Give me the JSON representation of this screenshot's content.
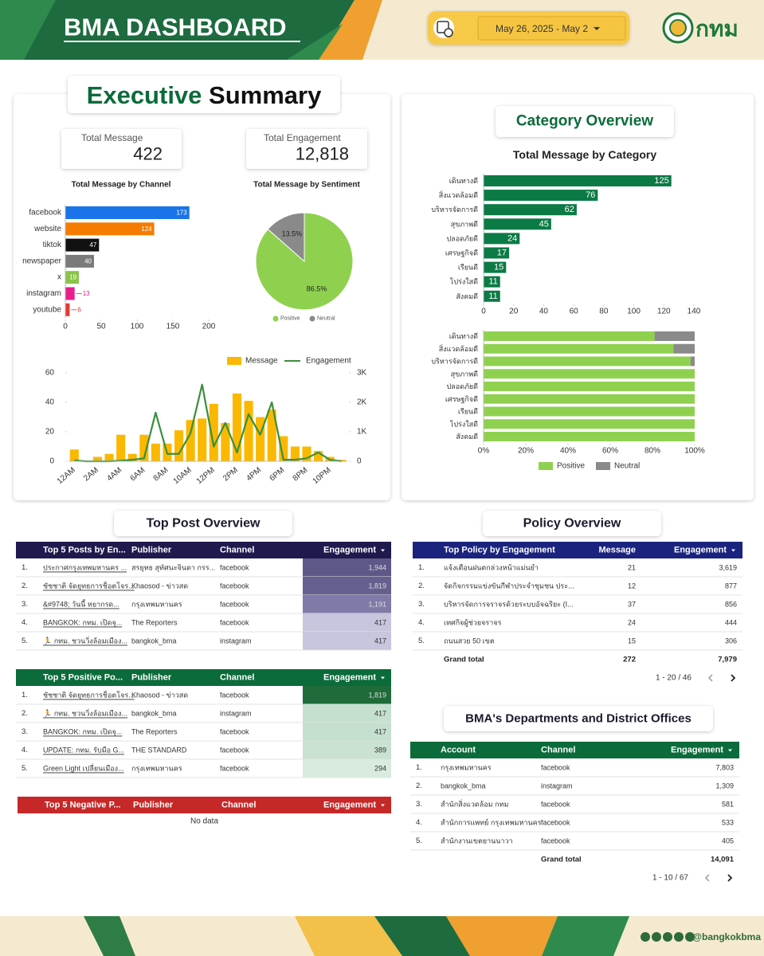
{
  "header": {
    "title": "BMA DASHBOARD",
    "date_range": "May 26, 2025 - May 2",
    "logo_text": "กทม"
  },
  "executive_summary": {
    "title_parts": [
      "Executive",
      "Summary"
    ],
    "cards": [
      {
        "label": "Total Message",
        "value": "422"
      },
      {
        "label": "Total Engagement",
        "value": "12,818"
      }
    ]
  },
  "category_overview": {
    "title": "Category Overview"
  },
  "chart_data": [
    {
      "type": "bar",
      "title": "Total Message by Channel",
      "horizontal": true,
      "categories": [
        "facebook",
        "website",
        "tiktok",
        "newspaper",
        "x",
        "instagram",
        "youtube"
      ],
      "values": [
        173,
        124,
        47,
        40,
        19,
        13,
        6
      ],
      "colors": [
        "#1a73e8",
        "#f57c00",
        "#111111",
        "#7a7a7a",
        "#8bc34a",
        "#e91e8c",
        "#e53935"
      ],
      "xlim": [
        0,
        200
      ],
      "xticks": [
        0,
        50,
        100,
        150,
        200
      ]
    },
    {
      "type": "pie",
      "title": "Total Message by Sentiment",
      "categories": [
        "Positive",
        "Neutral"
      ],
      "values": [
        86.5,
        13.5
      ],
      "value_labels": [
        "86.5%",
        "13.5%"
      ],
      "colors": [
        "#8fd14f",
        "#8a8a8a"
      ],
      "legend": "bottom"
    },
    {
      "type": "combo",
      "categories": [
        "12AM",
        null,
        "2AM",
        null,
        "4AM",
        null,
        "6AM",
        null,
        "8AM",
        null,
        "10AM",
        null,
        "12PM",
        null,
        "2PM",
        null,
        "4PM",
        null,
        "6PM",
        null,
        "8PM",
        null,
        "10PM",
        null
      ],
      "series": [
        {
          "name": "Message",
          "type": "bar",
          "color": "#fbb800",
          "values": [
            8,
            0,
            3,
            5,
            18,
            5,
            18,
            12,
            12,
            21,
            28,
            29,
            39,
            26,
            46,
            41,
            30,
            35,
            17,
            10,
            10,
            7,
            3,
            1
          ]
        },
        {
          "name": "Engagement",
          "type": "line",
          "axis": "y2",
          "color": "#3a8f3a",
          "values": [
            30,
            0,
            0,
            0,
            20,
            50,
            100,
            1650,
            250,
            250,
            950,
            2600,
            500,
            1300,
            300,
            1600,
            900,
            2000,
            50,
            50,
            100,
            300,
            50,
            0
          ]
        }
      ],
      "ylim": [
        0,
        60
      ],
      "yticks": [
        0,
        20,
        40,
        60
      ],
      "y2lim": [
        0,
        3000
      ],
      "y2ticks": [
        0,
        {
          "value": 1000,
          "label": "1K"
        },
        {
          "value": 2000,
          "label": "2K"
        },
        {
          "value": 3000,
          "label": "3K"
        }
      ],
      "legend": "top"
    },
    {
      "type": "bar",
      "title": "Total Message by Category",
      "horizontal": true,
      "categories": [
        "เดินทางดี",
        "สิ่งแวดล้อมดี",
        "บริหารจัดการดี",
        "สุขภาพดี",
        "ปลอดภัยดี",
        "เศรษฐกิจดี",
        "เรียนดี",
        "โปร่งใสดี",
        "สังคมดี"
      ],
      "values": [
        125,
        76,
        62,
        45,
        24,
        17,
        15,
        11,
        11
      ],
      "color": "#0b7a45",
      "xlim": [
        0,
        140
      ],
      "xticks": [
        0,
        20,
        40,
        60,
        80,
        100,
        120,
        140
      ]
    },
    {
      "type": "bar",
      "horizontal": true,
      "stacked": true,
      "categories": [
        "เดินทางดี",
        "สิ่งแวดล้อมดี",
        "บริหารจัดการดี",
        "สุขภาพดี",
        "ปลอดภัยดี",
        "เศรษฐกิจดี",
        "เรียนดี",
        "โปร่งใสดี",
        "สังคมดี"
      ],
      "series": [
        {
          "name": "Positive",
          "color": "#8fd14f",
          "values": [
            81,
            90,
            98,
            100,
            100,
            100,
            100,
            100,
            100
          ]
        },
        {
          "name": "Neutral",
          "color": "#8a8a8a",
          "values": [
            19,
            10,
            2,
            0,
            0,
            0,
            0,
            0,
            0
          ]
        }
      ],
      "xlim": [
        0,
        100
      ],
      "xticks": [
        {
          "value": 0,
          "label": "0%"
        },
        {
          "value": 20,
          "label": "20%"
        },
        {
          "value": 40,
          "label": "40%"
        },
        {
          "value": 60,
          "label": "60%"
        },
        {
          "value": 80,
          "label": "80%"
        },
        {
          "value": 100,
          "label": "100%"
        }
      ],
      "legend": "bottom"
    }
  ],
  "top_post_overview": {
    "title": "Top Post Overview",
    "tables": [
      {
        "columns": [
          "Top 5 Posts by En...",
          "Publisher",
          "Channel",
          "Engagement"
        ],
        "rows": [
          [
            "1.",
            "ประกาศกรุงเทพมหานคร ...",
            "สรยุทธ สุทัศนะจินดา กรร...",
            "facebook",
            "1,944"
          ],
          [
            "2.",
            "ชัชชาติ จัดยุทธการช็อตโจร...",
            "Khaosod - ข่าวสด",
            "facebook",
            "1,819"
          ],
          [
            "3.",
            "&#9748; วันนี้ หยากรด...",
            "กรุงเทพมหานคร",
            "facebook",
            "1,191"
          ],
          [
            "4.",
            "BANGKOK: กทม. เปิดจุ...",
            "The Reporters",
            "facebook",
            "417"
          ],
          [
            "5.",
            "🏃 กทม. ชวนวิ่งล้อมเมือง...",
            "bangkok_bma",
            "instagram",
            "417"
          ]
        ],
        "shade_colors": [
          "#5d5887",
          "#65608f",
          "#7f7aa8",
          "#c8c6de",
          "#c8c6de"
        ]
      },
      {
        "columns": [
          "Top 5 Positive Po...",
          "Publisher",
          "Channel",
          "Engagement"
        ],
        "rows": [
          [
            "1.",
            "ชัชชาติ จัดยุทธการช็อตโจร...",
            "Khaosod - ข่าวสด",
            "facebook",
            "1,819"
          ],
          [
            "2.",
            "🏃 กทม. ชวนวิ่งล้อมเมือง...",
            "bangkok_bma",
            "instagram",
            "417"
          ],
          [
            "3.",
            "BANGKOK: กทม. เปิดจุ...",
            "The Reporters",
            "facebook",
            "417"
          ],
          [
            "4.",
            "UPDATE: กทม. รับมือ G...",
            "THE STANDARD",
            "facebook",
            "389"
          ],
          [
            "5.",
            "Green Light เปลี่ยนเมือง...",
            "กรุงเทพมหานคร",
            "facebook",
            "294"
          ]
        ],
        "shade_colors": [
          "#1f6b3a",
          "#c5e0cf",
          "#c5e0cf",
          "#c9e2d2",
          "#d8ebde"
        ]
      },
      {
        "columns": [
          "Top 5 Negative P...",
          "Publisher",
          "Channel",
          "Engagement"
        ],
        "empty_text": "No data"
      }
    ]
  },
  "policy_overview": {
    "title": "Policy Overview",
    "table": {
      "columns": [
        "Top Policy by Engagement",
        "Message",
        "Engagement"
      ],
      "rows": [
        [
          "1.",
          "แจ้งเตือนฝนตกล่วงหน้าแม่นยำ",
          "21",
          "3,619"
        ],
        [
          "2.",
          "จัดกิจกรรมแข่งขันกีฬาประจำชุมชน ประ...",
          "12",
          "877"
        ],
        [
          "3.",
          "บริหารจัดการจราจรด้วยระบบอัจฉริยะ (I...",
          "37",
          "856"
        ],
        [
          "4.",
          "เทศกิจผู้ช่วยจราจร",
          "24",
          "444"
        ],
        [
          "5.",
          "ถนนสวย 50 เขต",
          "15",
          "306"
        ]
      ],
      "total": [
        "Grand total",
        "272",
        "7,979"
      ],
      "pagination": "1 - 20 / 46"
    }
  },
  "departments": {
    "title": "BMA's Departments and District Offices",
    "table": {
      "columns": [
        "Account",
        "Channel",
        "Engagement"
      ],
      "rows": [
        [
          "1.",
          "กรุงเทพมหานคร",
          "facebook",
          "7,803"
        ],
        [
          "2.",
          "bangkok_bma",
          "instagram",
          "1,309"
        ],
        [
          "3.",
          "สำนักสิ่งแวดล้อม กทม",
          "facebook",
          "581"
        ],
        [
          "4.",
          "สำนักการแพทย์ กรุงเทพมหานคร",
          "facebook",
          "533"
        ],
        [
          "5.",
          "สำนักงานเขตยานนาวา",
          "facebook",
          "405"
        ]
      ],
      "total": [
        "Grand total",
        "14,091"
      ],
      "pagination": "1 - 10 / 67"
    }
  },
  "footer": {
    "handle": "@bangkokbma"
  }
}
